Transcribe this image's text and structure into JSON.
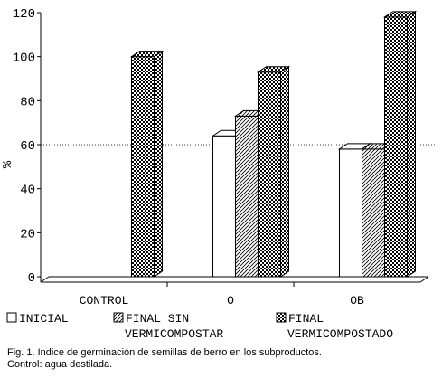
{
  "chart_data": {
    "type": "bar",
    "categories": [
      "CONTROL",
      "O",
      "OB"
    ],
    "series": [
      {
        "name": "INICIAL",
        "values": [
          0,
          64,
          58
        ],
        "pattern": "white"
      },
      {
        "name": "FINAL SIN VERMICOMPOSTAR",
        "values": [
          0,
          73,
          58
        ],
        "pattern": "hatch"
      },
      {
        "name": "FINAL VERMICOMPOSTADO",
        "values": [
          100,
          93,
          118
        ],
        "pattern": "checker"
      }
    ],
    "ylabel": "%",
    "ylim": [
      0,
      120
    ],
    "yticks": [
      0,
      20,
      40,
      60,
      80,
      100,
      120
    ],
    "reference_line": 60,
    "legend_placement": "bottom",
    "legend": [
      {
        "lines": [
          "INICIAL"
        ]
      },
      {
        "lines": [
          "FINAL SIN",
          "VERMICOMPOSTAR"
        ]
      },
      {
        "lines": [
          "FINAL",
          "VERMICOMPOSTADO"
        ]
      }
    ],
    "colors": {
      "solid": "#000000",
      "background": "#ffffff"
    }
  },
  "caption": {
    "line1": "Fig. 1. Indice de germinación de semillas de berro en los subproductos.",
    "line2": "Control: agua destilada."
  }
}
